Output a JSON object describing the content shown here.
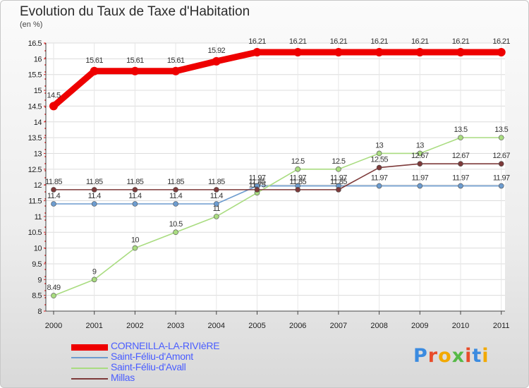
{
  "title": "Evolution du Taux de Taxe d'Habitation",
  "subtitle": "(en %)",
  "logo": {
    "text": "Proxiti",
    "letter_colors": [
      "#3b8be0",
      "#e84c2a",
      "#f2a900",
      "#56b947",
      "#e84c2a",
      "#3b8be0",
      "#f2a900"
    ]
  },
  "chart_data": {
    "type": "line",
    "x": [
      "2000",
      "2001",
      "2002",
      "2003",
      "2004",
      "2005",
      "2006",
      "2007",
      "2008",
      "2009",
      "2010",
      "2011"
    ],
    "ylim": [
      8,
      16.5
    ],
    "yticks": [
      "8",
      "8.5",
      "9",
      "9.5",
      "10",
      "10.5",
      "11",
      "11.5",
      "12",
      "12.5",
      "13",
      "13.5",
      "14",
      "14.5",
      "15",
      "15.5",
      "16",
      "16.5"
    ],
    "grid": true,
    "legend_placement": "bottom-left",
    "series": [
      {
        "name": "CORNEILLA-LA-RIVIèRE",
        "color": "#ee0000",
        "values": [
          14.5,
          15.61,
          15.61,
          15.61,
          15.92,
          16.21,
          16.21,
          16.21,
          16.21,
          16.21,
          16.21,
          16.21
        ],
        "labels": [
          "14.5",
          "15.61",
          "15.61",
          "15.61",
          "15.92",
          "16.21",
          "16.21",
          "16.21",
          "16.21",
          "16.21",
          "16.21",
          "16.21"
        ]
      },
      {
        "name": "Saint-Féliu-d'Amont",
        "color": "#6d9ccf",
        "values": [
          11.4,
          11.4,
          11.4,
          11.4,
          11.4,
          11.97,
          11.97,
          11.97,
          11.97,
          11.97,
          11.97,
          11.97
        ],
        "labels": [
          "11.4",
          "11.4",
          "11.4",
          "11.4",
          "11.4",
          "11.97",
          "11.97",
          "11.97",
          "11.97",
          "11.97",
          "11.97",
          "11.97"
        ]
      },
      {
        "name": "Saint-Féliu-d'Avall",
        "color": "#a9dc80",
        "values": [
          8.49,
          9,
          10,
          10.5,
          11,
          11.75,
          12.5,
          12.5,
          13,
          13,
          13.5,
          13.5
        ],
        "labels": [
          "8.49",
          "9",
          "10",
          "10.5",
          "11",
          "11.75",
          "12.5",
          "12.5",
          "13",
          "13",
          "13.5",
          "13.5"
        ]
      },
      {
        "name": "Millas",
        "color": "#7d3a3a",
        "values": [
          11.85,
          11.85,
          11.85,
          11.85,
          11.85,
          11.85,
          11.85,
          11.85,
          12.55,
          12.67,
          12.67,
          12.67
        ],
        "labels": [
          "11.85",
          "11.85",
          "11.85",
          "11.85",
          "11.85",
          "11.85",
          "11.85",
          "11.85",
          "12.55",
          "12.67",
          "12.67",
          "12.67"
        ]
      }
    ]
  }
}
